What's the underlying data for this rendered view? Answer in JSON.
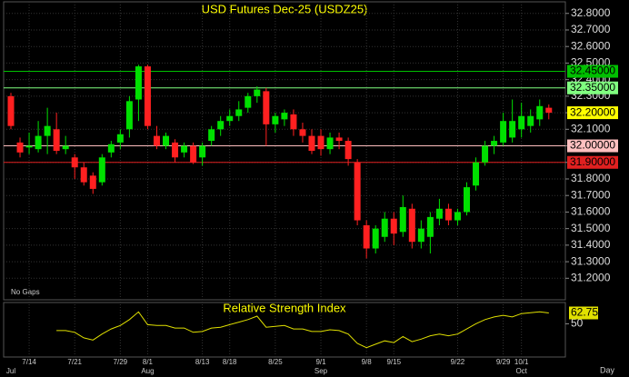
{
  "chart_data": [
    {
      "type": "candlestick",
      "title": "USD Futures Dec-25 (USDZ25)",
      "xlabel": "Day",
      "annotation": "No Gaps",
      "categories": [
        null,
        null,
        "7/14",
        null,
        null,
        null,
        null,
        "7/21",
        null,
        null,
        null,
        null,
        "7/29",
        null,
        null,
        "8/1",
        null,
        null,
        null,
        null,
        null,
        "8/13",
        null,
        null,
        "8/18",
        null,
        null,
        null,
        null,
        "8/25",
        null,
        null,
        null,
        null,
        "9/1",
        null,
        null,
        null,
        null,
        "9/8",
        null,
        null,
        "9/15",
        null,
        null,
        null,
        null,
        null,
        null,
        "9/22",
        null,
        null,
        null,
        null,
        "9/29",
        null,
        "10/1",
        null,
        null,
        null
      ],
      "months": [
        "Jul",
        null,
        null,
        null,
        null,
        null,
        null,
        null,
        null,
        null,
        null,
        null,
        null,
        null,
        null,
        "Aug",
        null,
        null,
        null,
        null,
        null,
        null,
        null,
        null,
        null,
        null,
        null,
        null,
        null,
        null,
        null,
        null,
        null,
        null,
        "Sep",
        null,
        null,
        null,
        null,
        null,
        null,
        null,
        null,
        null,
        null,
        null,
        null,
        null,
        null,
        null,
        null,
        null,
        null,
        null,
        null,
        null,
        "Oct",
        null,
        null,
        null
      ],
      "open": [
        32.3,
        32.02,
        31.99,
        31.98,
        32.06,
        32.1,
        31.98,
        31.93,
        31.87,
        31.82,
        31.78,
        31.96,
        32.02,
        32.1,
        32.28,
        32.48,
        32.06,
        32.0,
        32.02,
        31.96,
        32.0,
        31.93,
        32.03,
        32.1,
        32.15,
        32.18,
        32.23,
        32.3,
        32.33,
        32.13,
        32.16,
        32.19,
        32.1,
        32.06,
        32.06,
        31.98,
        32.05,
        32.03,
        31.9,
        31.52,
        31.38,
        31.45,
        31.56,
        31.48,
        31.62,
        31.42,
        31.45,
        31.56,
        31.62,
        31.55,
        31.6,
        31.76,
        31.9,
        32.0,
        32.02,
        32.05,
        32.1,
        32.12,
        32.16,
        32.23
      ],
      "high": [
        32.32,
        32.05,
        32.08,
        32.15,
        32.23,
        32.2,
        32.06,
        31.95,
        31.9,
        31.84,
        31.95,
        32.03,
        32.1,
        32.3,
        32.49,
        32.49,
        32.12,
        32.08,
        32.04,
        32.02,
        32.02,
        32.02,
        32.12,
        32.18,
        32.22,
        32.27,
        32.32,
        32.36,
        32.35,
        32.2,
        32.22,
        32.22,
        32.14,
        32.1,
        32.1,
        32.08,
        32.08,
        32.05,
        31.92,
        31.55,
        31.52,
        31.6,
        31.6,
        31.7,
        31.65,
        31.55,
        31.6,
        31.68,
        31.65,
        31.62,
        31.78,
        31.93,
        32.03,
        32.06,
        32.2,
        32.28,
        32.26,
        32.22,
        32.28,
        32.25
      ],
      "low": [
        32.1,
        31.93,
        31.95,
        31.96,
        31.95,
        31.95,
        31.95,
        31.8,
        31.76,
        31.71,
        31.76,
        31.93,
        31.98,
        32.05,
        32.15,
        32.1,
        31.98,
        31.98,
        31.9,
        31.93,
        31.89,
        31.88,
        32.0,
        32.06,
        32.12,
        32.15,
        32.2,
        32.26,
        32.0,
        32.08,
        32.12,
        32.06,
        32.02,
        31.95,
        31.94,
        31.95,
        31.98,
        31.88,
        31.52,
        31.32,
        31.35,
        31.42,
        31.4,
        31.45,
        31.38,
        31.38,
        31.35,
        31.52,
        31.52,
        31.52,
        31.58,
        31.73,
        31.88,
        31.95,
        32.0,
        32.02,
        32.05,
        32.08,
        32.12,
        32.16
      ],
      "close": [
        32.12,
        31.96,
        32.0,
        32.06,
        32.12,
        31.97,
        32.0,
        31.87,
        31.78,
        31.74,
        31.93,
        32.01,
        32.07,
        32.27,
        32.48,
        32.12,
        32.0,
        32.06,
        31.93,
        32.0,
        31.9,
        32.0,
        32.1,
        32.15,
        32.18,
        32.22,
        32.3,
        32.34,
        32.13,
        32.18,
        32.2,
        32.1,
        32.06,
        31.97,
        31.98,
        32.05,
        32.03,
        31.92,
        31.55,
        31.38,
        31.5,
        31.56,
        31.47,
        31.63,
        31.42,
        31.5,
        31.57,
        31.62,
        31.55,
        31.6,
        31.75,
        31.9,
        32.0,
        32.03,
        32.15,
        32.15,
        32.18,
        32.18,
        32.24,
        32.2
      ],
      "last_price_label": "32.20000",
      "last_price_color": "#ffff00",
      "up_color": "#00e000",
      "down_color": "#ff2020",
      "ylim": [
        31.07,
        32.87
      ],
      "yticks": [
        {
          "value": 31.2,
          "label": "31.2000"
        },
        {
          "value": 31.3,
          "label": "31.3000"
        },
        {
          "value": 31.4,
          "label": "31.4000"
        },
        {
          "value": 31.5,
          "label": "31.5000"
        },
        {
          "value": 31.6,
          "label": "31.6000"
        },
        {
          "value": 31.7,
          "label": "31.7000"
        },
        {
          "value": 31.8,
          "label": "31.8000"
        },
        {
          "value": 31.9,
          "label": "31.9000"
        },
        {
          "value": 32.0,
          "label": "32.0000"
        },
        {
          "value": 32.1,
          "label": "32.1000"
        },
        {
          "value": 32.2,
          "label": "32.2000"
        },
        {
          "value": 32.3,
          "label": "32.3000"
        },
        {
          "value": 32.4,
          "label": "32.4000"
        },
        {
          "value": 32.5,
          "label": "32.5000"
        },
        {
          "value": 32.6,
          "label": "32.6000"
        },
        {
          "value": 32.7,
          "label": "32.7000"
        },
        {
          "value": 32.8,
          "label": "32.8000"
        }
      ],
      "hlines": [
        {
          "value": 32.45,
          "label": "32.45000",
          "color": "#00c000"
        },
        {
          "value": 32.35,
          "label": "32.35000",
          "color": "#80ff80"
        },
        {
          "value": 32.0,
          "label": "32.00000",
          "color": "#ffc0c0"
        },
        {
          "value": 31.9,
          "label": "31.90000",
          "color": "#e02020"
        }
      ],
      "grid": true
    },
    {
      "type": "line",
      "title": "Relative Strength Index",
      "color": "#e0e000",
      "values": [
        null,
        null,
        null,
        null,
        null,
        42,
        42,
        40,
        33.5,
        31,
        38,
        44,
        48,
        55,
        64,
        49,
        48,
        48,
        45,
        45,
        40,
        41,
        45,
        46,
        49,
        52,
        55,
        59,
        46,
        47,
        48,
        44,
        44,
        41,
        41,
        43,
        42,
        38,
        27,
        22,
        26,
        30,
        28,
        35,
        29,
        32,
        36,
        38,
        36,
        38,
        44,
        50,
        55,
        58,
        60,
        58,
        62,
        63,
        64,
        62.75
      ],
      "ylim": [
        11,
        75
      ],
      "yticks": [
        50
      ]
    }
  ]
}
